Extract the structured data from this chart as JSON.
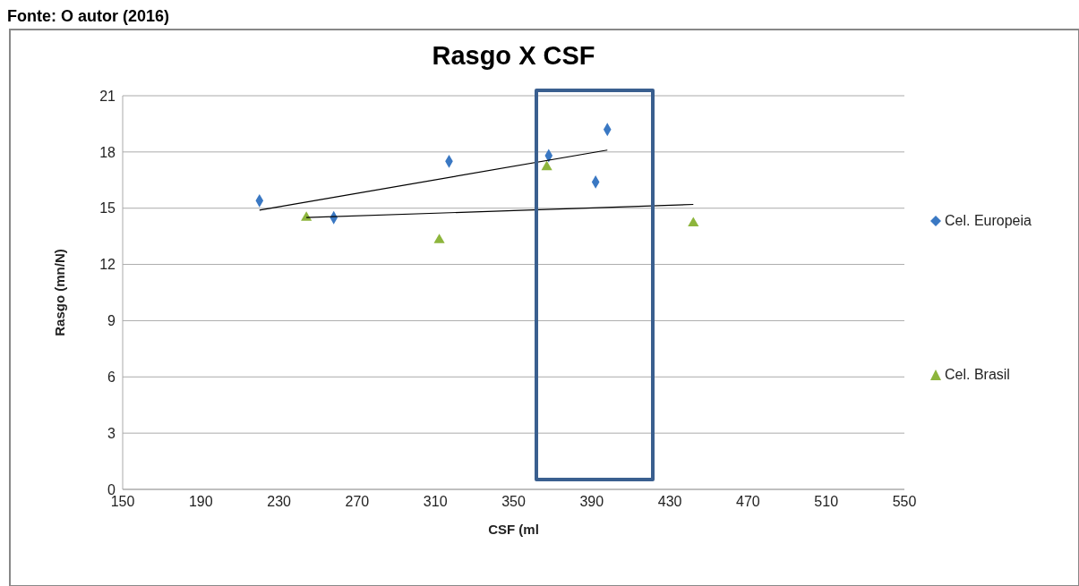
{
  "chart_data": {
    "type": "scatter",
    "title": "Rasgo X CSF",
    "xlabel": "CSF (ml",
    "ylabel": "Rasgo (mn/N)",
    "annotations": [
      "Fonte: O autor (2016)"
    ],
    "xlim": [
      150,
      550
    ],
    "xticks": [
      150,
      190,
      230,
      270,
      310,
      350,
      390,
      430,
      470,
      510,
      550
    ],
    "ylim": [
      0,
      21
    ],
    "yticks": [
      0,
      3,
      6,
      9,
      12,
      15,
      18,
      21
    ],
    "grid": "y",
    "legend": "right",
    "series": [
      {
        "name": "Cel. Europeia",
        "color": "#3a78c3",
        "marker": "diamond",
        "x": [
          220,
          258,
          317,
          368,
          392,
          398
        ],
        "values": [
          15.4,
          14.5,
          17.5,
          17.8,
          16.4,
          19.2
        ]
      },
      {
        "name": "Cel. Brasil",
        "color": "#8db53c",
        "marker": "triangle",
        "x": [
          244,
          312,
          367,
          442
        ],
        "values": [
          14.5,
          13.3,
          17.2,
          14.2
        ]
      },
      {
        "type": "line",
        "color": "#000000",
        "marker": "none",
        "x": [
          220,
          398
        ],
        "values": [
          14.9,
          18.1
        ]
      },
      {
        "type": "line",
        "color": "#000000",
        "marker": "none",
        "x": [
          244,
          442
        ],
        "values": [
          14.5,
          15.2
        ]
      }
    ]
  }
}
